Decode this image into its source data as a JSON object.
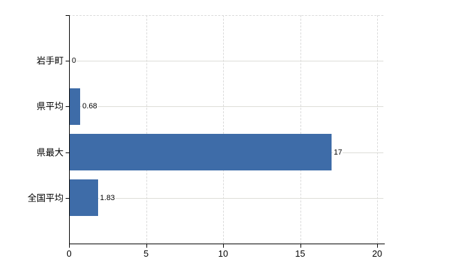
{
  "chart_data": {
    "type": "bar",
    "orientation": "horizontal",
    "title": "",
    "categories": [
      "岩手町",
      "県平均",
      "県最大",
      "全国平均"
    ],
    "values": [
      0,
      0.68,
      17,
      1.83
    ],
    "value_labels": [
      "0",
      "0.68",
      "17",
      "1.83"
    ],
    "x_ticks": [
      0,
      5,
      10,
      15,
      20
    ],
    "x_tick_labels": [
      "0",
      "5",
      "10",
      "15",
      "20"
    ],
    "xlim": [
      0,
      20
    ],
    "grid": true,
    "legend": false,
    "colors": {
      "bar": "#3e6ca8",
      "vertical_gridline": "#d9d9d9",
      "row_line": "#dcdcd6",
      "axis": "#000000",
      "text": "#000000",
      "background": "#ffffff"
    }
  }
}
